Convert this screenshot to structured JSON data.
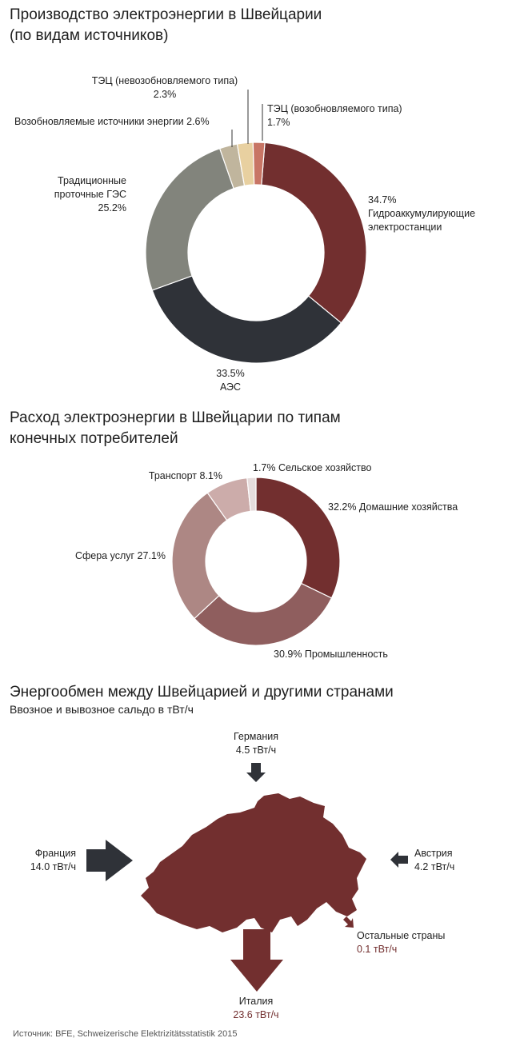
{
  "chart_data": [
    {
      "type": "pie",
      "title_lines": [
        "Производство электроэнергии в Швейцарии",
        "(по видам источников)"
      ],
      "slices": [
        {
          "name": "Гидроаккумулирующие электростанции",
          "value": 34.7,
          "color": "#722f2f",
          "label_lines": [
            "34.7%",
            "Гидроаккумулирующие",
            "электростанции"
          ]
        },
        {
          "name": "АЭС",
          "value": 33.5,
          "color": "#2f3238",
          "label_lines": [
            "33.5%",
            "АЭС"
          ]
        },
        {
          "name": "Традиционные проточные ГЭС",
          "value": 25.2,
          "color": "#82847c",
          "label_lines": [
            "Традиционные",
            "проточные ГЭС",
            "25.2%"
          ]
        },
        {
          "name": "Возобновляемые источники энергии",
          "value": 2.6,
          "color": "#c0b59d",
          "label_lines": [
            "Возобновляемые источники энергии 2.6%"
          ]
        },
        {
          "name": "ТЭЦ (невозобновляемого типа)",
          "value": 2.3,
          "color": "#e8d0a0",
          "label_lines": [
            "ТЭЦ (невозобновляемого типа)",
            "2.3%"
          ]
        },
        {
          "name": "ТЭЦ (возобновляемого типа)",
          "value": 1.7,
          "color": "#c87565",
          "label_lines": [
            "ТЭЦ (возобновляемого типа)",
            "1.7%"
          ]
        }
      ]
    },
    {
      "type": "pie",
      "title_lines": [
        "Расход электроэнергии в Швейцарии по типам",
        "конечных потребителей"
      ],
      "slices": [
        {
          "name": "Домашние хозяйства",
          "value": 32.2,
          "color": "#722f2f",
          "label_lines": [
            "32.2% Домашние хозяйства"
          ]
        },
        {
          "name": "Промышленность",
          "value": 30.9,
          "color": "#8f5e5e",
          "label_lines": [
            "30.9% Промышленность"
          ]
        },
        {
          "name": "Сфера услуг",
          "value": 27.1,
          "color": "#ad8784",
          "label_lines": [
            "Сфера услуг 27.1%"
          ]
        },
        {
          "name": "Транспорт",
          "value": 8.1,
          "color": "#ccacaa",
          "label_lines": [
            "Транспорт 8.1%"
          ]
        },
        {
          "name": "Сельское хозяйство",
          "value": 1.7,
          "color": "#e6dcdc",
          "label_lines": [
            "1.7% Сельское хозяйство"
          ]
        }
      ]
    },
    {
      "type": "map",
      "title": "Энергообмен между Швейцарией и другими странами",
      "subtitle": "Ввозное и вывозное сальдо в тВт/ч",
      "flows": [
        {
          "country": "Германия",
          "value": 4.5,
          "unit": "тВт/ч",
          "label": "4.5 тВт/ч",
          "direction": "import"
        },
        {
          "country": "Франция",
          "value": 14.0,
          "unit": "тВт/ч",
          "label": "14.0 тВт/ч",
          "direction": "import"
        },
        {
          "country": "Австрия",
          "value": 4.2,
          "unit": "тВт/ч",
          "label": "4.2 тВт/ч",
          "direction": "import"
        },
        {
          "country": "Остальные страны",
          "value": 0.1,
          "unit": "тВт/ч",
          "label": "0.1 тВт/ч",
          "direction": "export"
        },
        {
          "country": "Италия",
          "value": 23.6,
          "unit": "тВт/ч",
          "label": "23.6 тВт/ч",
          "direction": "export"
        }
      ],
      "colors": {
        "import": "#2f3238",
        "export": "#722f2f",
        "country": "#722f2f"
      }
    }
  ],
  "source": "Источник: BFE, Schweizerische Elektrizitätsstatistik 2015"
}
